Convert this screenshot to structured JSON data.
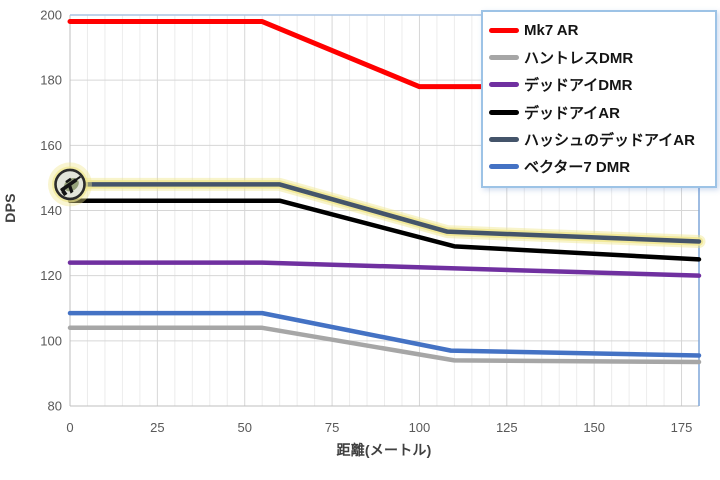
{
  "chart_data": {
    "type": "line",
    "title": "",
    "xlabel": "距離(メートル)",
    "ylabel": "DPS",
    "xlim": [
      0,
      180
    ],
    "ylim": [
      80,
      200
    ],
    "x_ticks": [
      0,
      25,
      50,
      75,
      100,
      125,
      150,
      175
    ],
    "y_ticks": [
      80,
      100,
      120,
      140,
      160,
      180,
      200
    ],
    "x_minor_step": 5,
    "grid": true,
    "legend_position": "top-right",
    "style": {
      "grid_minor_color": "#ECECEC",
      "grid_major_color": "#D6D6D6",
      "axis_line_color": "#BFBFBF",
      "plot_border_top_color": "#A9C4E4",
      "plot_border_right_color": "#7FA6D8",
      "tick_label_color": "#595959",
      "tick_font_size": 13
    },
    "series": [
      {
        "name": "Mk7 AR",
        "color": "#FF0000",
        "width": 5,
        "points": [
          [
            0,
            198
          ],
          [
            55,
            198
          ],
          [
            100,
            178
          ],
          [
            180,
            178
          ]
        ]
      },
      {
        "name": "ハントレスDMR",
        "color": "#A6A6A6",
        "width": 4.5,
        "points": [
          [
            0,
            104
          ],
          [
            55,
            104
          ],
          [
            110,
            94
          ],
          [
            180,
            93.5
          ]
        ]
      },
      {
        "name": "デッドアイDMR",
        "color": "#7030A0",
        "width": 4.5,
        "points": [
          [
            0,
            124
          ],
          [
            55,
            124
          ],
          [
            180,
            120
          ]
        ]
      },
      {
        "name": "デッドアイAR",
        "color": "#000000",
        "width": 4.5,
        "points": [
          [
            0,
            143
          ],
          [
            60,
            143
          ],
          [
            110,
            129
          ],
          [
            180,
            125
          ]
        ]
      },
      {
        "name": "ハッシュのデッドアイAR",
        "color": "#44546A",
        "width": 4.5,
        "glow_color": "#F0E68C",
        "marker": {
          "icon": "rifle-icon",
          "ring_color": "#2B2B2B",
          "fill": "#E3E5DA",
          "glow_color": "#F0E68C"
        },
        "points": [
          [
            0,
            148
          ],
          [
            60,
            148
          ],
          [
            108,
            133.5
          ],
          [
            180,
            130.5
          ]
        ]
      },
      {
        "name": "ベクター7 DMR",
        "color": "#4472C4",
        "width": 4.5,
        "points": [
          [
            0,
            108.5
          ],
          [
            55,
            108.5
          ],
          [
            109,
            97
          ],
          [
            180,
            95.5
          ]
        ]
      }
    ]
  },
  "legend": {
    "border_color": "#9DC3E6",
    "background": "#FFFFFF"
  }
}
